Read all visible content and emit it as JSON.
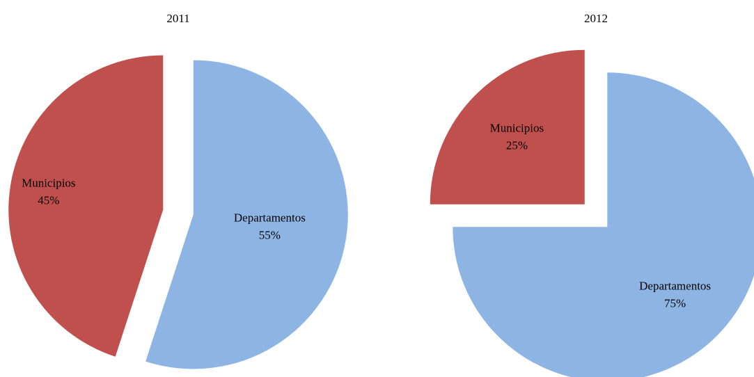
{
  "chart_data": [
    {
      "type": "pie",
      "title": "2011",
      "categories": [
        "Departamentos",
        "Municipios"
      ],
      "values": [
        55,
        45
      ],
      "value_labels": [
        "55%",
        "45%"
      ],
      "colors": [
        "#8eb4e3",
        "#c0504d"
      ],
      "exploded": true
    },
    {
      "type": "pie",
      "title": "2012",
      "categories": [
        "Departamentos",
        "Municipios"
      ],
      "values": [
        75,
        25
      ],
      "value_labels": [
        "75%",
        "25%"
      ],
      "colors": [
        "#8eb4e3",
        "#c0504d"
      ],
      "exploded": true
    }
  ]
}
